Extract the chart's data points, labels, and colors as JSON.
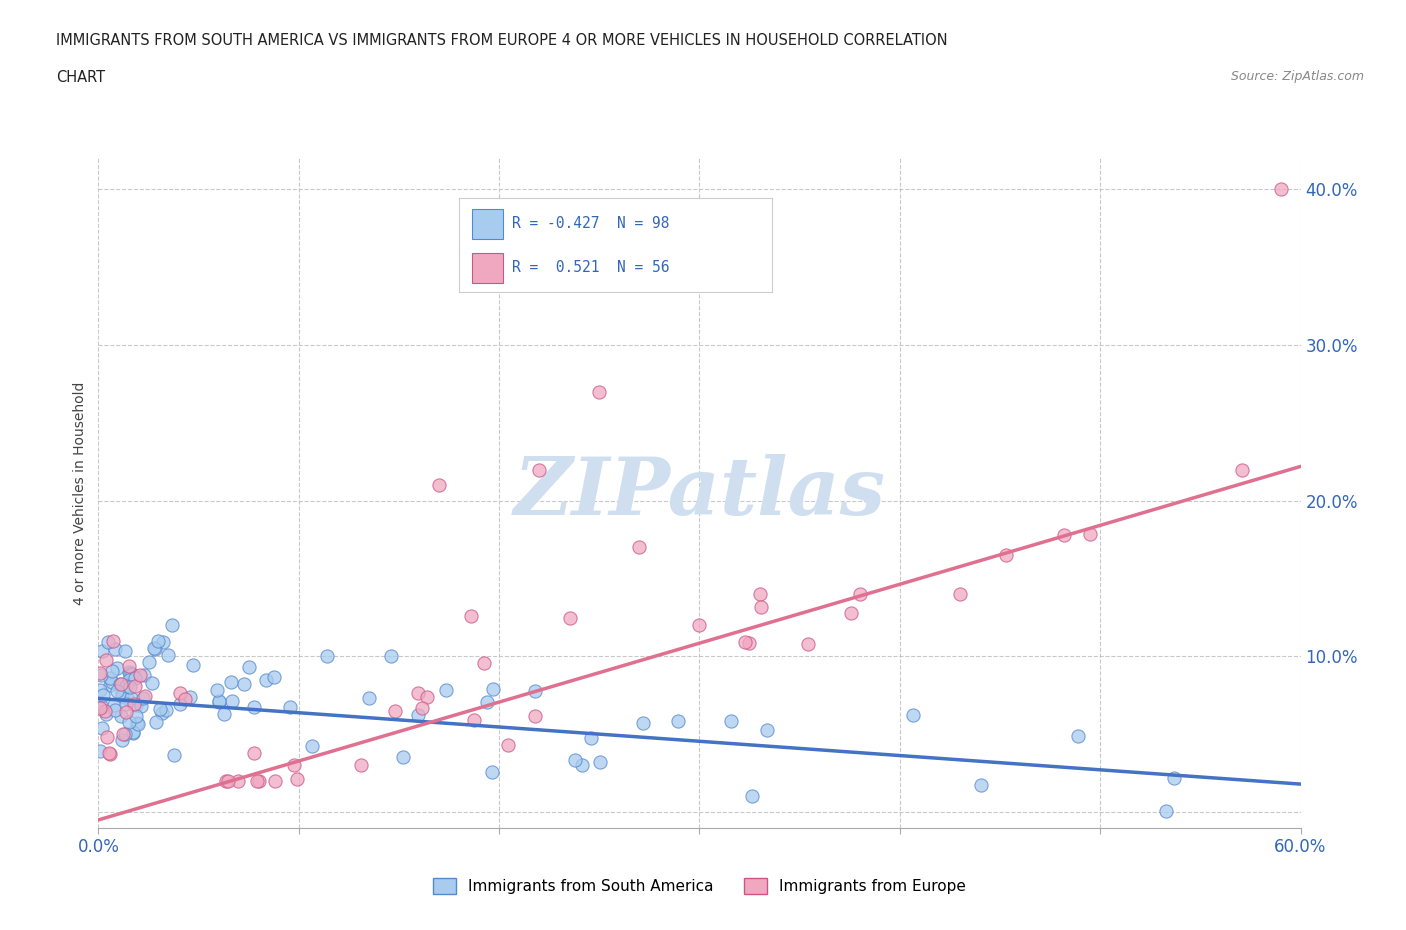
{
  "title_line1": "IMMIGRANTS FROM SOUTH AMERICA VS IMMIGRANTS FROM EUROPE 4 OR MORE VEHICLES IN HOUSEHOLD CORRELATION",
  "title_line2": "CHART",
  "source": "Source: ZipAtlas.com",
  "ylabel": "4 or more Vehicles in Household",
  "xlim": [
    0.0,
    0.6
  ],
  "ylim": [
    -0.01,
    0.42
  ],
  "xticks": [
    0.0,
    0.1,
    0.2,
    0.3,
    0.4,
    0.5,
    0.6
  ],
  "yticks": [
    0.0,
    0.1,
    0.2,
    0.3,
    0.4
  ],
  "ytick_labels": [
    "",
    "10.0%",
    "20.0%",
    "30.0%",
    "40.0%"
  ],
  "xtick_labels": [
    "0.0%",
    "",
    "",
    "",
    "",
    "",
    "60.0%"
  ],
  "blue_R": -0.427,
  "blue_N": 98,
  "pink_R": 0.521,
  "pink_N": 56,
  "blue_color": "#A8CCF0",
  "pink_color": "#F0A8C0",
  "blue_edge_color": "#5588CC",
  "pink_edge_color": "#CC5588",
  "blue_line_color": "#4472C4",
  "pink_line_color": "#E07090",
  "legend_label_blue": "Immigrants from South America",
  "legend_label_pink": "Immigrants from Europe",
  "watermark": "ZIPatlas",
  "watermark_color": "#D0DFF0",
  "blue_line_x0": 0.0,
  "blue_line_x1": 0.6,
  "blue_line_y0": 0.073,
  "blue_line_y1": 0.018,
  "pink_line_x0": 0.0,
  "pink_line_x1": 0.6,
  "pink_line_y0": -0.005,
  "pink_line_y1": 0.222
}
